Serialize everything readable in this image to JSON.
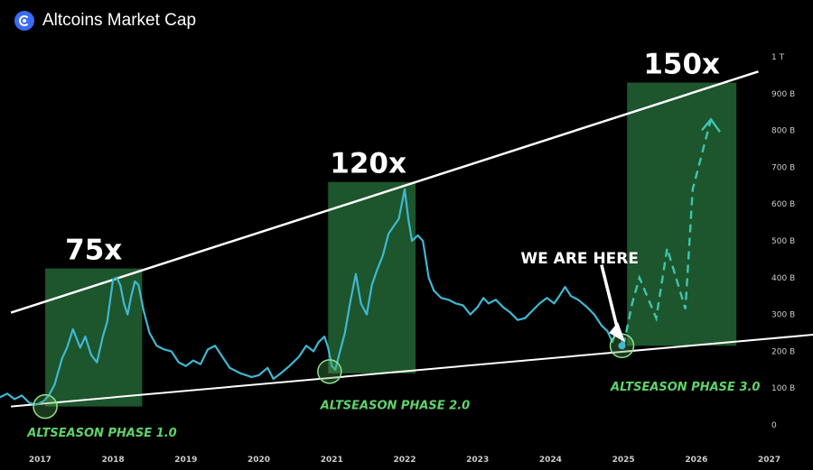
{
  "header": {
    "title": "Altcoins Market Cap",
    "logo_icon": "circle-swirl-logo-icon"
  },
  "colors": {
    "background": "#000000",
    "line": "#3fb8d2",
    "zone_fill": "#1f5a2e",
    "trend_line": "#ffffff",
    "phase_text": "#5fd36a",
    "axis_text": "#cccccc"
  },
  "chart_data": {
    "type": "line",
    "title": "Altcoins Market Cap",
    "y_unit": "USD",
    "y_scale": "linear",
    "ylim": [
      0,
      1000000000000
    ],
    "y_ticks": [
      {
        "label": "0",
        "value": 0
      },
      {
        "label": "100 B",
        "value": 100000000000
      },
      {
        "label": "200 B",
        "value": 200000000000
      },
      {
        "label": "300 B",
        "value": 300000000000
      },
      {
        "label": "400 B",
        "value": 400000000000
      },
      {
        "label": "500 B",
        "value": 500000000000
      },
      {
        "label": "600 B",
        "value": 600000000000
      },
      {
        "label": "700 B",
        "value": 700000000000
      },
      {
        "label": "800 B",
        "value": 800000000000
      },
      {
        "label": "900 B",
        "value": 900000000000
      },
      {
        "label": "1 T",
        "value": 1000000000000
      }
    ],
    "x_ticks": [
      "2017",
      "2018",
      "2019",
      "2020",
      "2021",
      "2022",
      "2023",
      "2024",
      "2025",
      "2026",
      "2027"
    ],
    "xlim": [
      2016.45,
      2027.6
    ],
    "series": [
      {
        "values": [
          [
            2016.45,
            75
          ],
          [
            2016.55,
            85
          ],
          [
            2016.65,
            70
          ],
          [
            2016.75,
            80
          ],
          [
            2016.85,
            60
          ],
          [
            2016.95,
            55
          ],
          [
            2017.05,
            65
          ],
          [
            2017.12,
            80
          ],
          [
            2017.2,
            110
          ],
          [
            2017.3,
            180
          ],
          [
            2017.37,
            210
          ],
          [
            2017.45,
            260
          ],
          [
            2017.55,
            210
          ],
          [
            2017.62,
            240
          ],
          [
            2017.7,
            190
          ],
          [
            2017.78,
            170
          ],
          [
            2017.86,
            240
          ],
          [
            2017.92,
            280
          ],
          [
            2018.0,
            395
          ],
          [
            2018.05,
            400
          ],
          [
            2018.1,
            380
          ],
          [
            2018.15,
            330
          ],
          [
            2018.2,
            300
          ],
          [
            2018.25,
            350
          ],
          [
            2018.3,
            390
          ],
          [
            2018.35,
            380
          ],
          [
            2018.42,
            310
          ],
          [
            2018.5,
            250
          ],
          [
            2018.6,
            215
          ],
          [
            2018.7,
            205
          ],
          [
            2018.8,
            200
          ],
          [
            2018.9,
            170
          ],
          [
            2019.0,
            160
          ],
          [
            2019.1,
            175
          ],
          [
            2019.2,
            165
          ],
          [
            2019.3,
            205
          ],
          [
            2019.4,
            215
          ],
          [
            2019.5,
            185
          ],
          [
            2019.6,
            155
          ],
          [
            2019.75,
            140
          ],
          [
            2019.9,
            130
          ],
          [
            2020.0,
            135
          ],
          [
            2020.12,
            155
          ],
          [
            2020.2,
            125
          ],
          [
            2020.3,
            140
          ],
          [
            2020.42,
            160
          ],
          [
            2020.55,
            185
          ],
          [
            2020.65,
            215
          ],
          [
            2020.75,
            200
          ],
          [
            2020.82,
            225
          ],
          [
            2020.9,
            240
          ],
          [
            2020.95,
            210
          ],
          [
            2021.0,
            160
          ],
          [
            2021.05,
            150
          ],
          [
            2021.1,
            190
          ],
          [
            2021.18,
            250
          ],
          [
            2021.25,
            330
          ],
          [
            2021.33,
            410
          ],
          [
            2021.4,
            330
          ],
          [
            2021.48,
            300
          ],
          [
            2021.55,
            380
          ],
          [
            2021.62,
            420
          ],
          [
            2021.7,
            460
          ],
          [
            2021.78,
            520
          ],
          [
            2021.85,
            540
          ],
          [
            2021.92,
            560
          ],
          [
            2022.0,
            640
          ],
          [
            2022.05,
            560
          ],
          [
            2022.1,
            500
          ],
          [
            2022.18,
            515
          ],
          [
            2022.25,
            500
          ],
          [
            2022.33,
            400
          ],
          [
            2022.4,
            365
          ],
          [
            2022.5,
            345
          ],
          [
            2022.6,
            340
          ],
          [
            2022.7,
            330
          ],
          [
            2022.8,
            325
          ],
          [
            2022.9,
            300
          ],
          [
            2023.0,
            320
          ],
          [
            2023.08,
            345
          ],
          [
            2023.15,
            330
          ],
          [
            2023.25,
            340
          ],
          [
            2023.35,
            320
          ],
          [
            2023.45,
            305
          ],
          [
            2023.55,
            285
          ],
          [
            2023.65,
            290
          ],
          [
            2023.75,
            310
          ],
          [
            2023.85,
            330
          ],
          [
            2023.95,
            345
          ],
          [
            2024.05,
            330
          ],
          [
            2024.12,
            350
          ],
          [
            2024.2,
            375
          ],
          [
            2024.28,
            350
          ],
          [
            2024.38,
            340
          ],
          [
            2024.5,
            320
          ],
          [
            2024.6,
            300
          ],
          [
            2024.7,
            270
          ],
          [
            2024.78,
            255
          ],
          [
            2024.85,
            225
          ],
          [
            2024.92,
            270
          ],
          [
            2025.0,
            215
          ]
        ]
      },
      {
        "values": [
          [
            2025.0,
            215
          ],
          [
            2025.12,
            330
          ],
          [
            2025.22,
            400
          ],
          [
            2025.45,
            290
          ],
          [
            2025.6,
            480
          ],
          [
            2025.85,
            315
          ],
          [
            2025.95,
            640
          ],
          [
            2026.2,
            830
          ]
        ]
      }
    ],
    "trend_lines": {
      "upper": [
        [
          2016.6,
          305
        ],
        [
          2026.85,
          960
        ]
      ],
      "lower": [
        [
          2016.6,
          50
        ],
        [
          2027.6,
          245
        ]
      ]
    },
    "zones": [
      {
        "x": [
          2017.07,
          2018.4
        ],
        "y": [
          50,
          425
        ],
        "label": "75x"
      },
      {
        "x": [
          2020.95,
          2022.15
        ],
        "y": [
          140,
          660
        ],
        "label": "120x"
      },
      {
        "x": [
          2025.05,
          2026.55
        ],
        "y": [
          215,
          930
        ],
        "label": "150x"
      }
    ],
    "phase_labels": [
      {
        "text": "ALTSEASON PHASE 1.0",
        "x": 2017.85,
        "y": -20
      },
      {
        "text": "ALTSEASON PHASE 2.0",
        "x": 2021.87,
        "y": 55
      },
      {
        "text": "ALTSEASON PHASE 3.0",
        "x": 2025.85,
        "y": 105
      }
    ],
    "markers": [
      {
        "x": 2017.07,
        "y": 50
      },
      {
        "x": 2020.97,
        "y": 145
      },
      {
        "x": 2024.98,
        "y": 215
      }
    ],
    "annotation": {
      "text": "WE ARE HERE",
      "x": 2024.4,
      "y": 475,
      "arrow_to": [
        2024.95,
        235
      ]
    }
  }
}
